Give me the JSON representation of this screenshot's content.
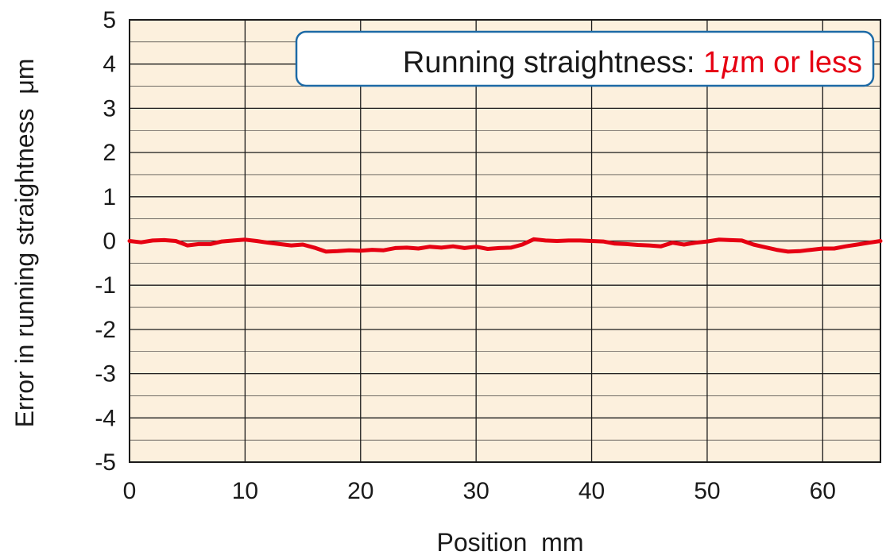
{
  "chart_data": {
    "type": "line",
    "xlabel": "Position  mm",
    "ylabel": "Error in running straightness  μm",
    "xlim": [
      0,
      65
    ],
    "ylim": [
      -5,
      5
    ],
    "x_ticks": [
      0,
      10,
      20,
      30,
      40,
      50,
      60
    ],
    "y_ticks": [
      5,
      4,
      3,
      2,
      1,
      0,
      -1,
      -2,
      -3,
      -4,
      -5
    ],
    "grid": true,
    "annotation": {
      "prefix": "Running straightness: ",
      "value_text": "1",
      "unit_mu": "μ",
      "suffix": "m or less"
    },
    "series": [
      {
        "color": "#e60012",
        "x": [
          0,
          1,
          2,
          3,
          4,
          5,
          6,
          7,
          8,
          9,
          10,
          11,
          12,
          13,
          14,
          15,
          16,
          17,
          18,
          19,
          20,
          21,
          22,
          23,
          24,
          25,
          26,
          27,
          28,
          29,
          30,
          31,
          32,
          33,
          34,
          35,
          36,
          37,
          38,
          39,
          40,
          41,
          42,
          43,
          44,
          45,
          46,
          47,
          48,
          49,
          50,
          51,
          52,
          53,
          54,
          55,
          56,
          57,
          58,
          59,
          60,
          61,
          62,
          63,
          64,
          65
        ],
        "y": [
          0.0,
          -0.03,
          0.01,
          0.02,
          0.0,
          -0.1,
          -0.07,
          -0.07,
          -0.01,
          0.01,
          0.03,
          0.0,
          -0.04,
          -0.07,
          -0.1,
          -0.08,
          -0.15,
          -0.24,
          -0.23,
          -0.21,
          -0.22,
          -0.2,
          -0.21,
          -0.16,
          -0.15,
          -0.17,
          -0.13,
          -0.15,
          -0.12,
          -0.16,
          -0.13,
          -0.18,
          -0.16,
          -0.15,
          -0.08,
          0.04,
          0.01,
          0.0,
          0.01,
          0.01,
          0.0,
          -0.01,
          -0.06,
          -0.07,
          -0.09,
          -0.1,
          -0.12,
          -0.04,
          -0.08,
          -0.04,
          -0.01,
          0.03,
          0.02,
          0.01,
          -0.08,
          -0.14,
          -0.2,
          -0.24,
          -0.23,
          -0.2,
          -0.17,
          -0.17,
          -0.12,
          -0.08,
          -0.04,
          0.0
        ]
      }
    ]
  },
  "colors": {
    "plot_background": "#fcf0dd",
    "grid": "#1a1a1a",
    "annotation_border": "#1d6aa6",
    "annotation_text": "#1a1a1a",
    "highlight": "#e60012"
  }
}
